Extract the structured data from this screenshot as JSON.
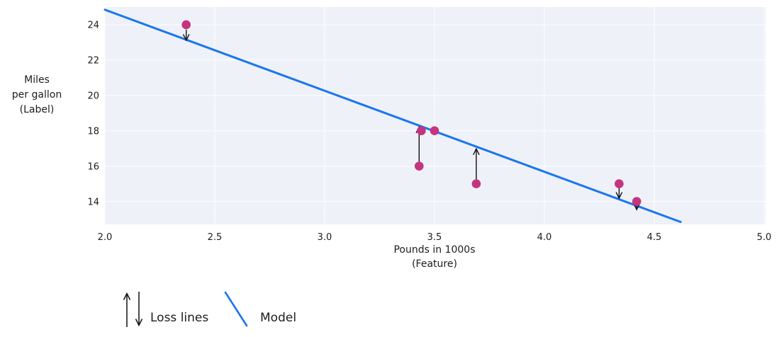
{
  "chart_data": {
    "type": "scatter",
    "title": "",
    "xlabel_lines": [
      "Pounds in 1000s",
      "(Feature)"
    ],
    "ylabel_lines": [
      "Miles",
      "per gallon",
      "(Label)"
    ],
    "xlim": [
      2.0,
      5.0
    ],
    "ylim": [
      12.7,
      25.0
    ],
    "xticks": [
      2.0,
      2.5,
      3.0,
      3.5,
      4.0,
      4.5,
      5.0
    ],
    "xtick_labels": [
      "2.0",
      "2.5",
      "3.0",
      "3.5",
      "4.0",
      "4.5",
      "5.0"
    ],
    "yticks": [
      14,
      16,
      18,
      20,
      22,
      24
    ],
    "ytick_labels": [
      "14",
      "16",
      "18",
      "20",
      "22",
      "24"
    ],
    "grid": true,
    "points": [
      {
        "x": 2.37,
        "y": 24
      },
      {
        "x": 3.43,
        "y": 16
      },
      {
        "x": 3.44,
        "y": 18
      },
      {
        "x": 3.5,
        "y": 18
      },
      {
        "x": 3.69,
        "y": 15
      },
      {
        "x": 4.34,
        "y": 15
      },
      {
        "x": 4.42,
        "y": 14
      }
    ],
    "model_line": {
      "x1": 2.0,
      "y1": 24.85,
      "x2": 4.62,
      "y2": 12.84
    },
    "loss_arrows": [
      {
        "x": 2.37,
        "y_from": 23.72,
        "y_to": 23.12,
        "direction": "down"
      },
      {
        "x": 3.43,
        "y_from": 16.2,
        "y_to": 18.22,
        "direction": "up"
      },
      {
        "x": 3.69,
        "y_from": 15.2,
        "y_to": 16.98,
        "direction": "up"
      },
      {
        "x": 4.34,
        "y_from": 14.76,
        "y_to": 14.18,
        "direction": "down"
      },
      {
        "x": 4.42,
        "y_from": 13.92,
        "y_to": 13.54,
        "direction": "down"
      }
    ],
    "legend": {
      "loss_label": "Loss lines",
      "model_label": "Model",
      "position": "below-left"
    },
    "colors": {
      "point": "#c53480",
      "model_line": "#1b76ee",
      "arrow": "#111111",
      "plot_bg": "#eef1f8",
      "grid": "#fafbfd",
      "text": "#1d1d1d"
    }
  }
}
